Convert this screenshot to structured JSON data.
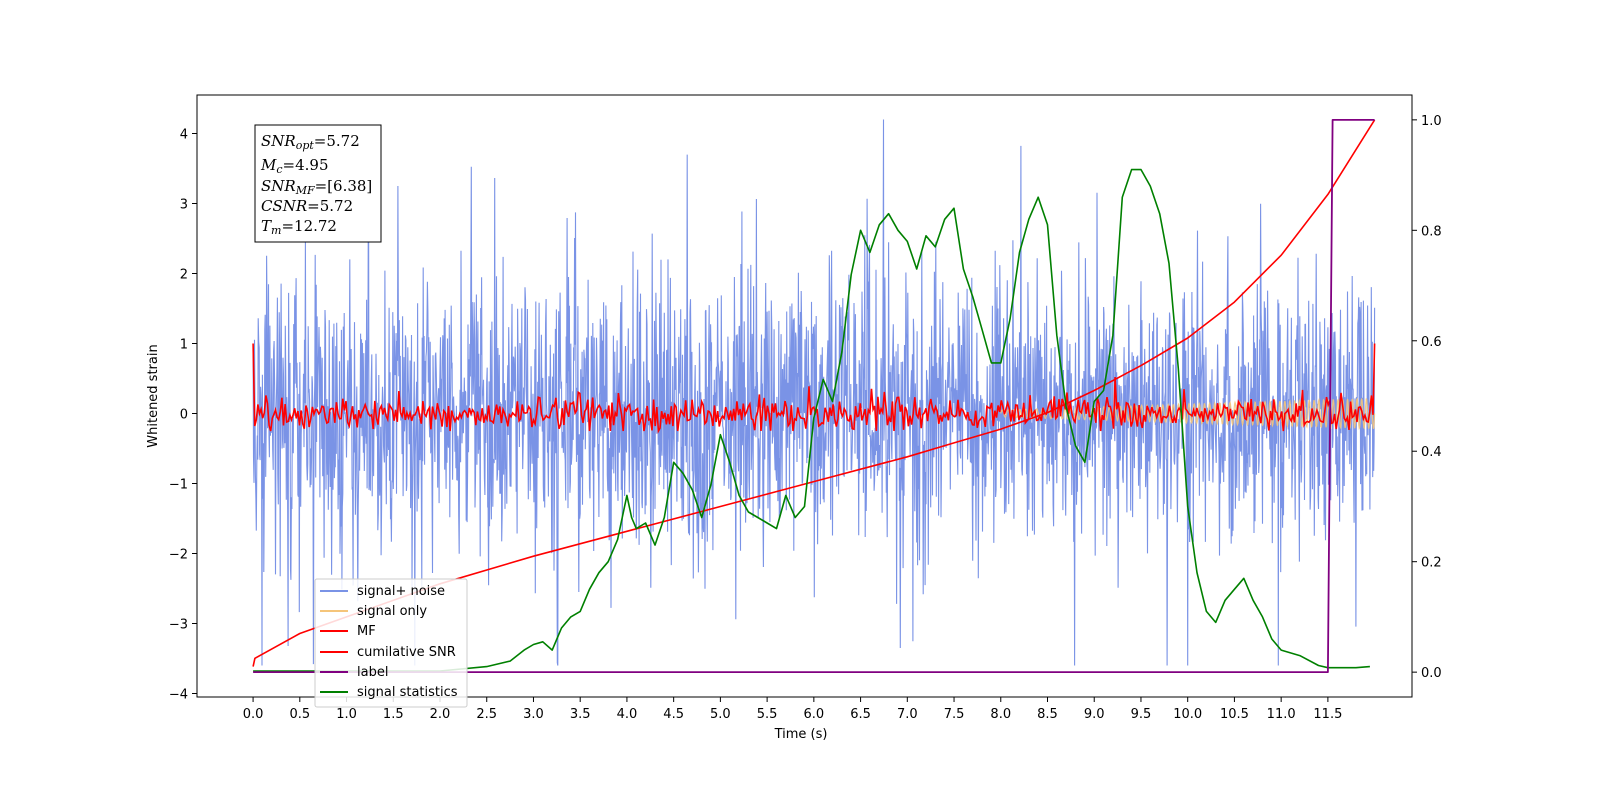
{
  "chart_data": {
    "type": "line",
    "xlabel": "Time (s)",
    "ylabel": "Whitened strain",
    "xlim": [
      -0.6,
      12.4
    ],
    "ylim": [
      -4.05,
      4.55
    ],
    "y2lim": [
      -0.045,
      1.045
    ],
    "xticks": [
      "0.0",
      "0.5",
      "1.0",
      "1.5",
      "2.0",
      "2.5",
      "3.0",
      "3.5",
      "4.0",
      "4.5",
      "5.0",
      "5.5",
      "6.0",
      "6.5",
      "7.0",
      "7.5",
      "8.0",
      "8.5",
      "9.0",
      "9.5",
      "10.0",
      "10.5",
      "11.0",
      "11.5"
    ],
    "yticks": [
      "4",
      "3",
      "2",
      "1",
      "0",
      "−1",
      "−2",
      "−3",
      "−4"
    ],
    "y2ticks": [
      "1.0",
      "0.8",
      "0.6",
      "0.4",
      "0.2",
      "0.0"
    ],
    "grid": false,
    "legend_position": "lower-left",
    "legend": [
      "signal+ noise",
      "signal only",
      "MF",
      "cumilative SNR",
      "label",
      "signal statistics"
    ],
    "colors": {
      "signal_noise": "#7a93e6",
      "signal_only": "#f5c57a",
      "mf": "#ff0000",
      "cumulative_snr": "#ff0000",
      "label": "#800080",
      "signal_statistics": "#008000"
    },
    "annotation": {
      "snr_opt": {
        "base": "SNR",
        "sub": "opt",
        "value": "=5.72"
      },
      "mc": {
        "base": "M",
        "sub": "c",
        "value": "=4.95"
      },
      "snr_mf": {
        "base": "SNR",
        "sub": "MF",
        "value": "=[6.38]"
      },
      "csnr": {
        "base": "CSNR",
        "sub": "",
        "value": "=5.72"
      },
      "tm": {
        "base": "T",
        "sub": "m",
        "value": "=12.72"
      }
    },
    "series": [
      {
        "name": "signal+ noise",
        "axis": "left",
        "t_range": [
          0.0,
          12.0
        ],
        "description": "dense noise band, mostly between -1.4 and 1.5 with spikes to about 4.2 and -3.6"
      },
      {
        "name": "signal only",
        "axis": "left",
        "t_range": [
          8.0,
          12.0
        ],
        "description": "chirp envelope growing to about 0.2 near the end"
      },
      {
        "name": "MF",
        "axis": "left",
        "t_range": [
          0.0,
          12.0
        ],
        "description": "oscillates near 0 within about -0.25 to 0.5; starts at 1.0 and ends at 1.0"
      },
      {
        "name": "cumilative SNR",
        "axis": "right",
        "x": [
          0.0,
          0.02,
          0.5,
          1.0,
          2.0,
          3.0,
          4.0,
          5.0,
          6.0,
          7.0,
          7.5,
          8.0,
          8.5,
          9.0,
          9.5,
          10.0,
          10.5,
          11.0,
          11.5,
          12.0
        ],
        "y": [
          0.01,
          0.025,
          0.07,
          0.1,
          0.16,
          0.21,
          0.255,
          0.3,
          0.345,
          0.39,
          0.415,
          0.44,
          0.47,
          0.51,
          0.555,
          0.605,
          0.67,
          0.755,
          0.865,
          1.0
        ]
      },
      {
        "name": "label",
        "axis": "right",
        "x": [
          0.0,
          11.5,
          11.55,
          12.0
        ],
        "y": [
          0.0,
          0.0,
          1.0,
          1.0
        ]
      },
      {
        "name": "signal statistics",
        "axis": "right",
        "x": [
          0.0,
          1.0,
          2.0,
          2.5,
          2.75,
          2.9,
          3.0,
          3.1,
          3.2,
          3.3,
          3.4,
          3.5,
          3.6,
          3.7,
          3.8,
          3.9,
          4.0,
          4.05,
          4.1,
          4.2,
          4.3,
          4.4,
          4.5,
          4.6,
          4.7,
          4.8,
          4.9,
          5.0,
          5.1,
          5.2,
          5.3,
          5.4,
          5.5,
          5.6,
          5.7,
          5.8,
          5.9,
          6.0,
          6.1,
          6.2,
          6.3,
          6.4,
          6.5,
          6.6,
          6.7,
          6.8,
          6.9,
          7.0,
          7.1,
          7.2,
          7.3,
          7.4,
          7.5,
          7.6,
          7.7,
          7.8,
          7.9,
          8.0,
          8.1,
          8.2,
          8.3,
          8.4,
          8.5,
          8.6,
          8.7,
          8.8,
          8.9,
          9.0,
          9.1,
          9.2,
          9.3,
          9.4,
          9.5,
          9.6,
          9.7,
          9.8,
          9.9,
          10.0,
          10.1,
          10.2,
          10.3,
          10.4,
          10.5,
          10.6,
          10.7,
          10.8,
          10.9,
          11.0,
          11.2,
          11.4,
          11.5,
          11.8,
          11.95
        ],
        "y": [
          0.002,
          0.002,
          0.002,
          0.01,
          0.02,
          0.04,
          0.05,
          0.055,
          0.04,
          0.08,
          0.1,
          0.11,
          0.15,
          0.18,
          0.2,
          0.24,
          0.32,
          0.28,
          0.26,
          0.27,
          0.23,
          0.28,
          0.38,
          0.36,
          0.33,
          0.28,
          0.34,
          0.43,
          0.38,
          0.32,
          0.29,
          0.28,
          0.27,
          0.26,
          0.32,
          0.28,
          0.3,
          0.46,
          0.53,
          0.49,
          0.58,
          0.72,
          0.8,
          0.76,
          0.81,
          0.83,
          0.8,
          0.78,
          0.73,
          0.79,
          0.77,
          0.82,
          0.84,
          0.73,
          0.68,
          0.62,
          0.56,
          0.56,
          0.64,
          0.76,
          0.82,
          0.86,
          0.81,
          0.61,
          0.48,
          0.41,
          0.38,
          0.49,
          0.51,
          0.61,
          0.86,
          0.91,
          0.91,
          0.88,
          0.83,
          0.74,
          0.55,
          0.3,
          0.18,
          0.11,
          0.09,
          0.13,
          0.15,
          0.17,
          0.13,
          0.1,
          0.06,
          0.04,
          0.03,
          0.012,
          0.008,
          0.008,
          0.01
        ]
      }
    ]
  }
}
